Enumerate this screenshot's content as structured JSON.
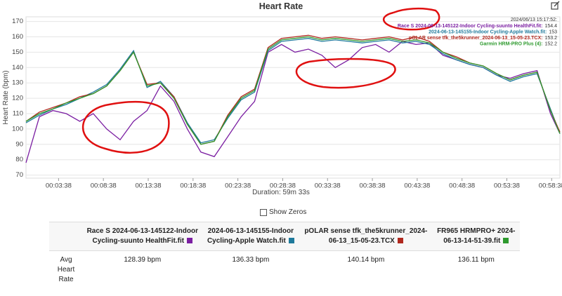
{
  "chart_data": {
    "type": "line",
    "title": "Heart Rate",
    "y_label": "Heart Rate (bpm)",
    "x_label": "Duration: 59m 33s",
    "x": [
      0,
      90,
      180,
      270,
      360,
      450,
      540,
      630,
      720,
      810,
      900,
      990,
      1080,
      1170,
      1260,
      1350,
      1440,
      1530,
      1620,
      1710,
      1800,
      1890,
      1980,
      2070,
      2160,
      2250,
      2340,
      2430,
      2520,
      2610,
      2700,
      2790,
      2880,
      2970,
      3060,
      3150,
      3240,
      3330,
      3420,
      3510,
      3573
    ],
    "xlim": [
      0,
      3573
    ],
    "xticks": [
      {
        "value": 218,
        "label": "00:03:38"
      },
      {
        "value": 518,
        "label": "00:08:38"
      },
      {
        "value": 818,
        "label": "00:13:38"
      },
      {
        "value": 1118,
        "label": "00:18:38"
      },
      {
        "value": 1418,
        "label": "00:23:38"
      },
      {
        "value": 1718,
        "label": "00:28:38"
      },
      {
        "value": 2018,
        "label": "00:33:38"
      },
      {
        "value": 2318,
        "label": "00:38:38"
      },
      {
        "value": 2618,
        "label": "00:43:38"
      },
      {
        "value": 2918,
        "label": "00:48:38"
      },
      {
        "value": 3218,
        "label": "00:53:38"
      },
      {
        "value": 3518,
        "label": "00:58:38"
      }
    ],
    "ylim": [
      68,
      173
    ],
    "yticks": [
      70,
      80,
      90,
      100,
      110,
      120,
      130,
      140,
      150,
      160,
      170
    ],
    "grid": true,
    "series": [
      {
        "name": "Race S 2024-06-13-145122-Indoor Cycling-suunto HealthFit.fit",
        "color": "#7b1fa2",
        "values": [
          78,
          108,
          112,
          110,
          105,
          110,
          100,
          93,
          105,
          112,
          128,
          118,
          100,
          85,
          82,
          95,
          108,
          118,
          150,
          155,
          150,
          152,
          148,
          140,
          145,
          153,
          155,
          150,
          157,
          155,
          156,
          148,
          145,
          142,
          140,
          135,
          133,
          136,
          138,
          110,
          97
        ]
      },
      {
        "name": "2024-06-13-145155-Indoor Cycling-Apple Watch.fit",
        "color": "#1f7a9c",
        "values": [
          104,
          109,
          113,
          116,
          120,
          124,
          129,
          139,
          151,
          127,
          131,
          121,
          104,
          91,
          93,
          107,
          119,
          124,
          151,
          157,
          158,
          159,
          157,
          158,
          157,
          156,
          157,
          158,
          156,
          157,
          155,
          149,
          145,
          142,
          140,
          135,
          131,
          134,
          136,
          113,
          97
        ]
      },
      {
        "name": "pOLAR sense tfk_the5krunner_2024-06-13_15-05-23.TCX",
        "color": "#b0281e",
        "values": [
          105,
          111,
          114,
          117,
          121,
          123,
          128,
          138,
          150,
          129,
          130,
          121,
          103,
          90,
          92,
          109,
          121,
          126,
          153,
          159,
          160,
          161,
          159,
          160,
          159,
          158,
          159,
          160,
          158,
          160,
          157,
          150,
          147,
          143,
          141,
          136,
          132,
          135,
          137,
          112,
          98
        ]
      },
      {
        "name": "Garmin HRM-PRO Plus (4)",
        "color": "#2e9a2e",
        "values": [
          105,
          110,
          113,
          117,
          120,
          123,
          128,
          138,
          150,
          128,
          130,
          120,
          103,
          90,
          92,
          108,
          120,
          125,
          152,
          158,
          159,
          160,
          158,
          159,
          158,
          157,
          158,
          159,
          157,
          158,
          156,
          150,
          146,
          143,
          141,
          136,
          132,
          135,
          137,
          112,
          97
        ]
      }
    ],
    "tooltip": {
      "time": "2024/06/13 15:17:52:",
      "items": [
        {
          "label": "Race S 2024-06-13-145122-Indoor Cycling-suunto HealthFit.fit:",
          "value": 154.4
        },
        {
          "label": "2024-06-13-145155-Indoor Cycling-Apple Watch.fit:",
          "value": 153
        },
        {
          "label": "pOLAR sense tfk_the5krunner_2024-06-13_15-05-23.TCX:",
          "value": 153.2
        },
        {
          "label": "Garmin HRM-PRO Plus (4):",
          "value": 152.2
        }
      ]
    }
  },
  "controls": {
    "show_zeros": "Show Zeros"
  },
  "table": {
    "columns": [
      {
        "label": "Race S 2024-06-13-145122-Indoor Cycling-suunto HealthFit.fit",
        "color": "#7b1fa2"
      },
      {
        "label": "2024-06-13-145155-Indoor Cycling-Apple Watch.fit",
        "color": "#1f7a9c"
      },
      {
        "label": "pOLAR sense tfk_the5krunner_2024-06-13_15-05-23.TCX",
        "color": "#b0281e"
      },
      {
        "label": "FR965 HRMPRO+ 2024-06-13-14-51-39.fit",
        "color": "#2e9a2e"
      }
    ],
    "rows": [
      [
        "Avg Heart Rate",
        "128.39 bpm",
        "136.33 bpm",
        "140.14 bpm",
        "136.11 bpm"
      ]
    ]
  }
}
